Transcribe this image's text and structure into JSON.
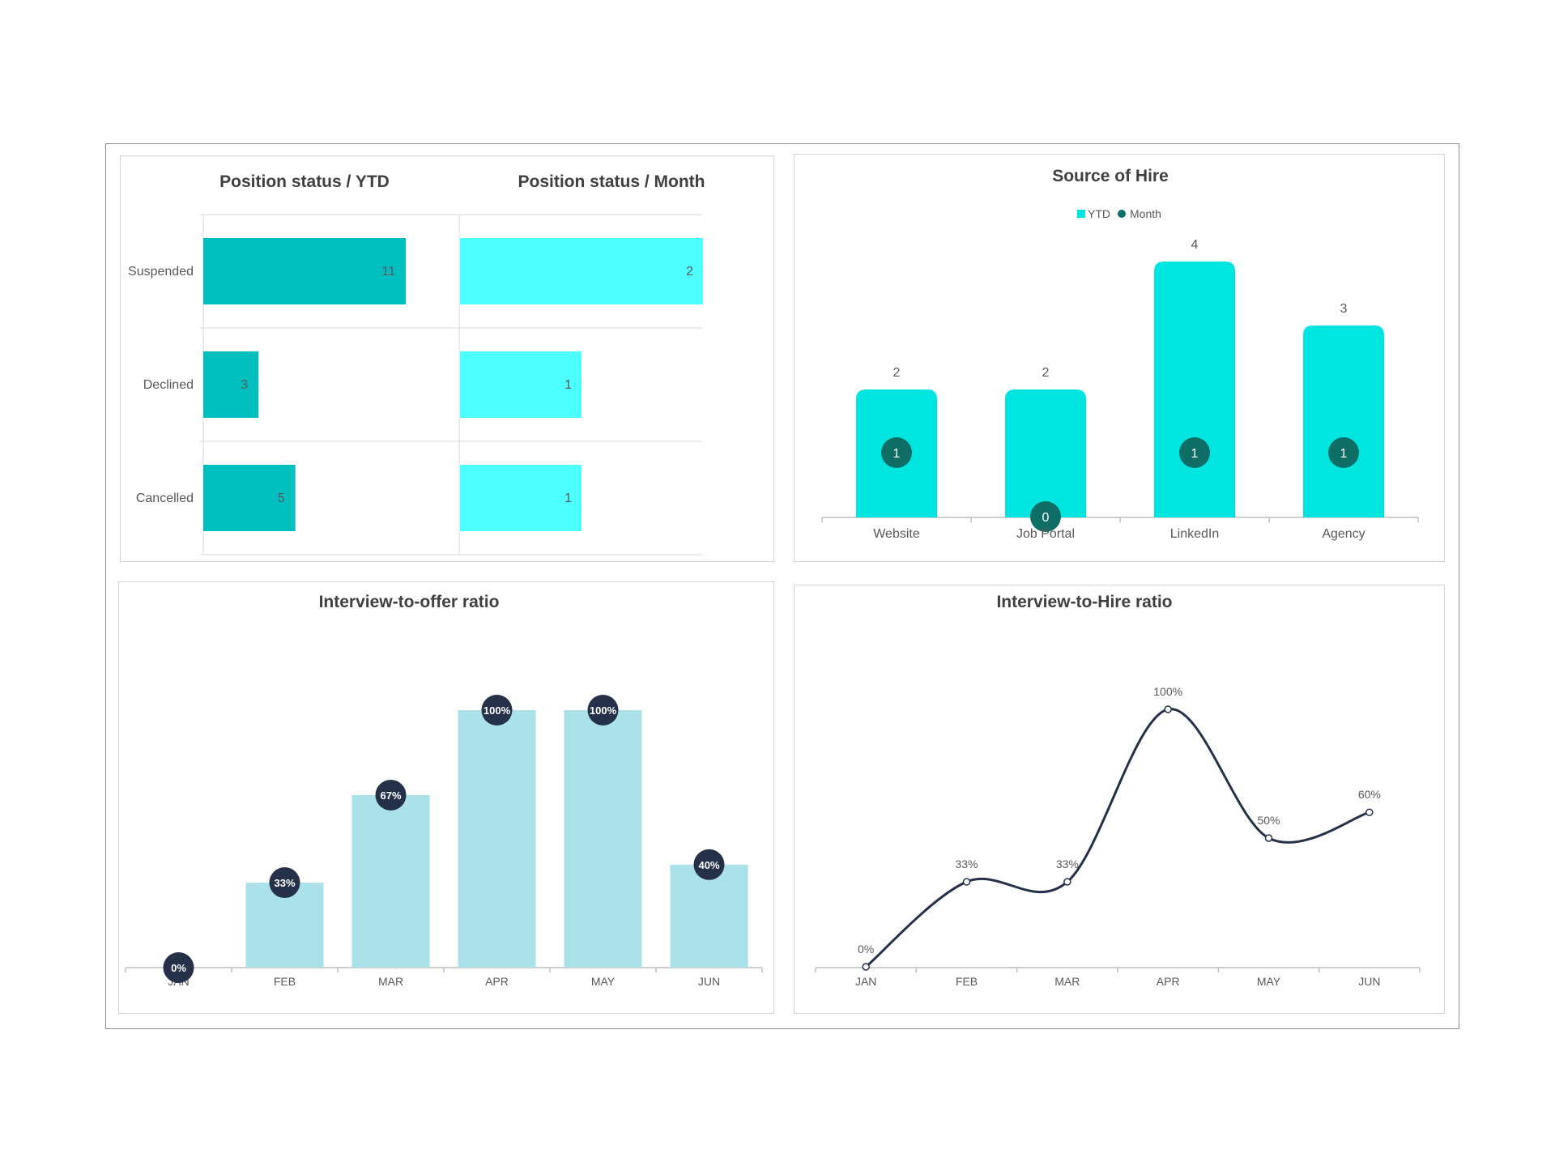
{
  "colors": {
    "ytd_bar": "#00BFBF",
    "month_bar": "#4DFFFF",
    "source_bar": "#00E5E0",
    "source_dot": "#0E6E66",
    "ratio_bar": "#ABE1E8",
    "ratio_dot": "#243149",
    "line": "#243149"
  },
  "chart_data": [
    {
      "type": "bar",
      "orientation": "horizontal",
      "title": "Position status / YTD",
      "categories": [
        "Suspended",
        "Declined",
        "Cancelled"
      ],
      "values": [
        11,
        3,
        5
      ],
      "xlim": [
        0,
        18
      ]
    },
    {
      "type": "bar",
      "orientation": "horizontal",
      "title": "Position status / Month",
      "categories": [
        "Suspended",
        "Declined",
        "Cancelled"
      ],
      "values": [
        2,
        1,
        1
      ],
      "xlim": [
        0,
        2.6
      ]
    },
    {
      "type": "bar",
      "title": "Source of Hire",
      "categories": [
        "Website",
        "Job Portal",
        "LinkedIn",
        "Agency"
      ],
      "series": [
        {
          "name": "YTD",
          "values": [
            2,
            2,
            4,
            3
          ],
          "style": "bar"
        },
        {
          "name": "Month",
          "values": [
            1,
            0,
            1,
            1
          ],
          "style": "dot"
        }
      ],
      "ylim": [
        0,
        4.4
      ],
      "legend": "top-center"
    },
    {
      "type": "bar",
      "title": "Interview-to-offer ratio",
      "categories": [
        "JAN",
        "FEB",
        "MAR",
        "APR",
        "MAY",
        "JUN"
      ],
      "values": [
        0,
        33,
        67,
        100,
        100,
        40
      ],
      "labels": [
        "0%",
        "33%",
        "67%",
        "100%",
        "100%",
        "40%"
      ],
      "ylim": [
        0,
        100
      ]
    },
    {
      "type": "line",
      "title": "Interview-to-Hire ratio",
      "categories": [
        "JAN",
        "FEB",
        "MAR",
        "APR",
        "MAY",
        "JUN"
      ],
      "values": [
        0,
        33,
        33,
        100,
        50,
        60
      ],
      "labels": [
        "0%",
        "33%",
        "33%",
        "100%",
        "50%",
        "60%"
      ],
      "ylim": [
        0,
        100
      ]
    }
  ]
}
